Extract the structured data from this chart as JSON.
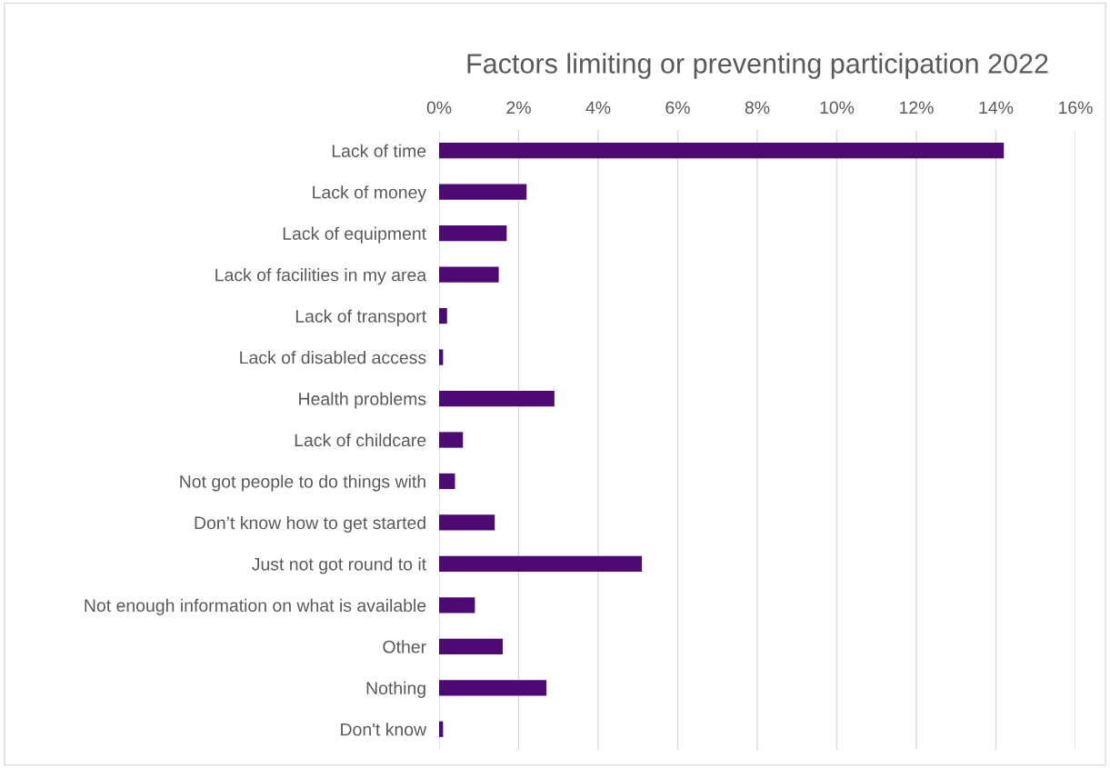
{
  "chart_data": {
    "type": "bar",
    "orientation": "horizontal",
    "title": "Factors limiting or preventing participation 2022",
    "categories": [
      "Lack of time",
      "Lack of money",
      "Lack of equipment",
      "Lack of facilities in my area",
      "Lack of transport",
      "Lack of disabled access",
      "Health problems",
      "Lack of childcare",
      "Not got people to do things with",
      "Don’t know how to get started",
      "Just not got round to it",
      "Not enough information on what is available",
      "Other",
      "Nothing",
      "Don't know"
    ],
    "values": [
      14.2,
      2.2,
      1.7,
      1.5,
      0.2,
      0.1,
      2.9,
      0.6,
      0.4,
      1.4,
      5.1,
      0.9,
      1.6,
      2.7,
      0.1
    ],
    "color": "#4e0a73",
    "xlim": [
      0,
      16
    ],
    "xticks": [
      {
        "value": 0,
        "label": "0%"
      },
      {
        "value": 2,
        "label": "2%"
      },
      {
        "value": 4,
        "label": "4%"
      },
      {
        "value": 6,
        "label": "6%"
      },
      {
        "value": 8,
        "label": "8%"
      },
      {
        "value": 10,
        "label": "10%"
      },
      {
        "value": 12,
        "label": "12%"
      },
      {
        "value": 14,
        "label": "14%"
      },
      {
        "value": 16,
        "label": "16%"
      }
    ],
    "grid": "x"
  }
}
